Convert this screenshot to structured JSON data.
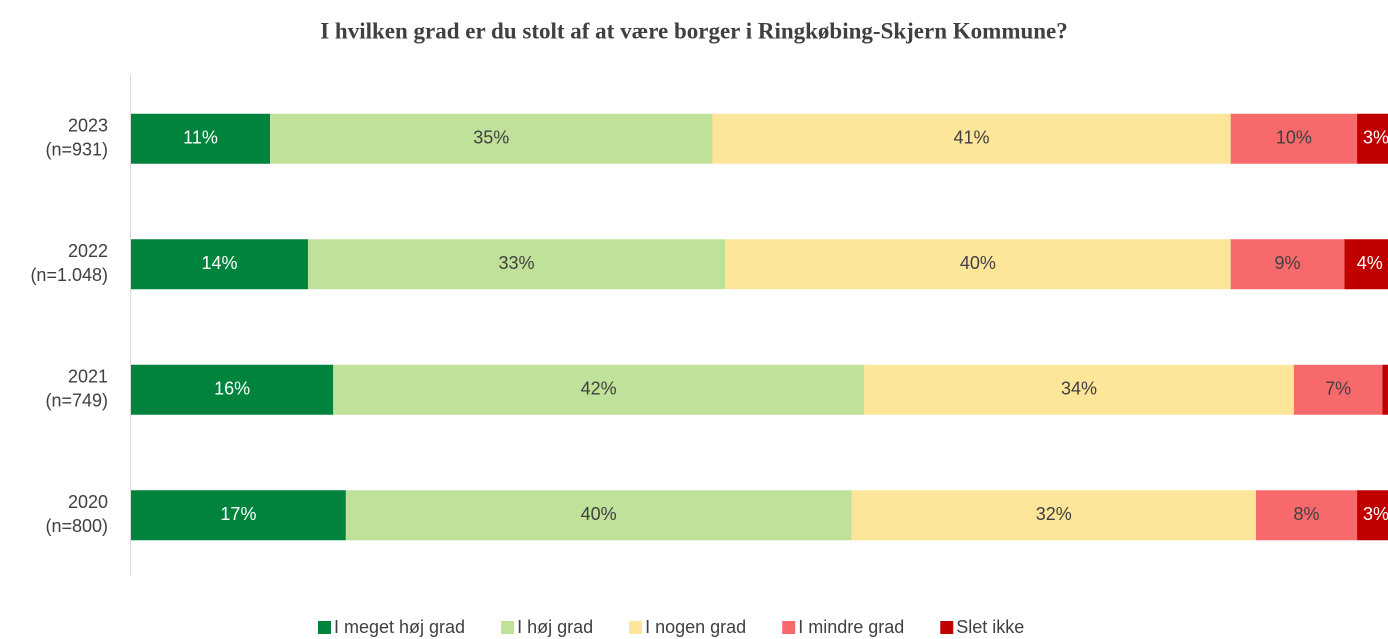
{
  "chart_data": {
    "type": "stacked-bar-horizontal",
    "title": "I hvilken grad er du stolt af at være borger i Ringkøbing-Skjern Kommune?",
    "categories": [
      [
        "2023",
        "(n=931)"
      ],
      [
        "2022",
        "(n=1.048)"
      ],
      [
        "2021",
        "(n=749)"
      ],
      [
        "2020",
        "(n=800)"
      ]
    ],
    "xlim": [
      0,
      100
    ],
    "legend": "bottom",
    "series": [
      {
        "name": "I meget høj grad",
        "color": "#00843d",
        "label_color": "#ffffff",
        "values": [
          11,
          14,
          16,
          17
        ],
        "value_labels": [
          "11%",
          "14%",
          "16%",
          "17%"
        ]
      },
      {
        "name": "I høj grad",
        "color": "#c0e19a",
        "label_color": "#404040",
        "values": [
          35,
          33,
          42,
          40
        ],
        "value_labels": [
          "35%",
          "33%",
          "42%",
          "40%"
        ]
      },
      {
        "name": "I nogen grad",
        "color": "#fde59a",
        "label_color": "#404040",
        "values": [
          41,
          40,
          34,
          32
        ],
        "value_labels": [
          "41%",
          "40%",
          "34%",
          "32%"
        ]
      },
      {
        "name": "I mindre grad",
        "color": "#f8696b",
        "label_color": "#404040",
        "values": [
          10,
          9,
          7,
          8
        ],
        "value_labels": [
          "10%",
          "9%",
          "7%",
          "8%"
        ]
      },
      {
        "name": "Slet ikke",
        "color": "#c00000",
        "label_color": "#ffffff",
        "values": [
          3,
          4,
          1,
          3
        ],
        "value_labels": [
          "3%",
          "4%",
          null,
          "3%"
        ]
      }
    ]
  }
}
